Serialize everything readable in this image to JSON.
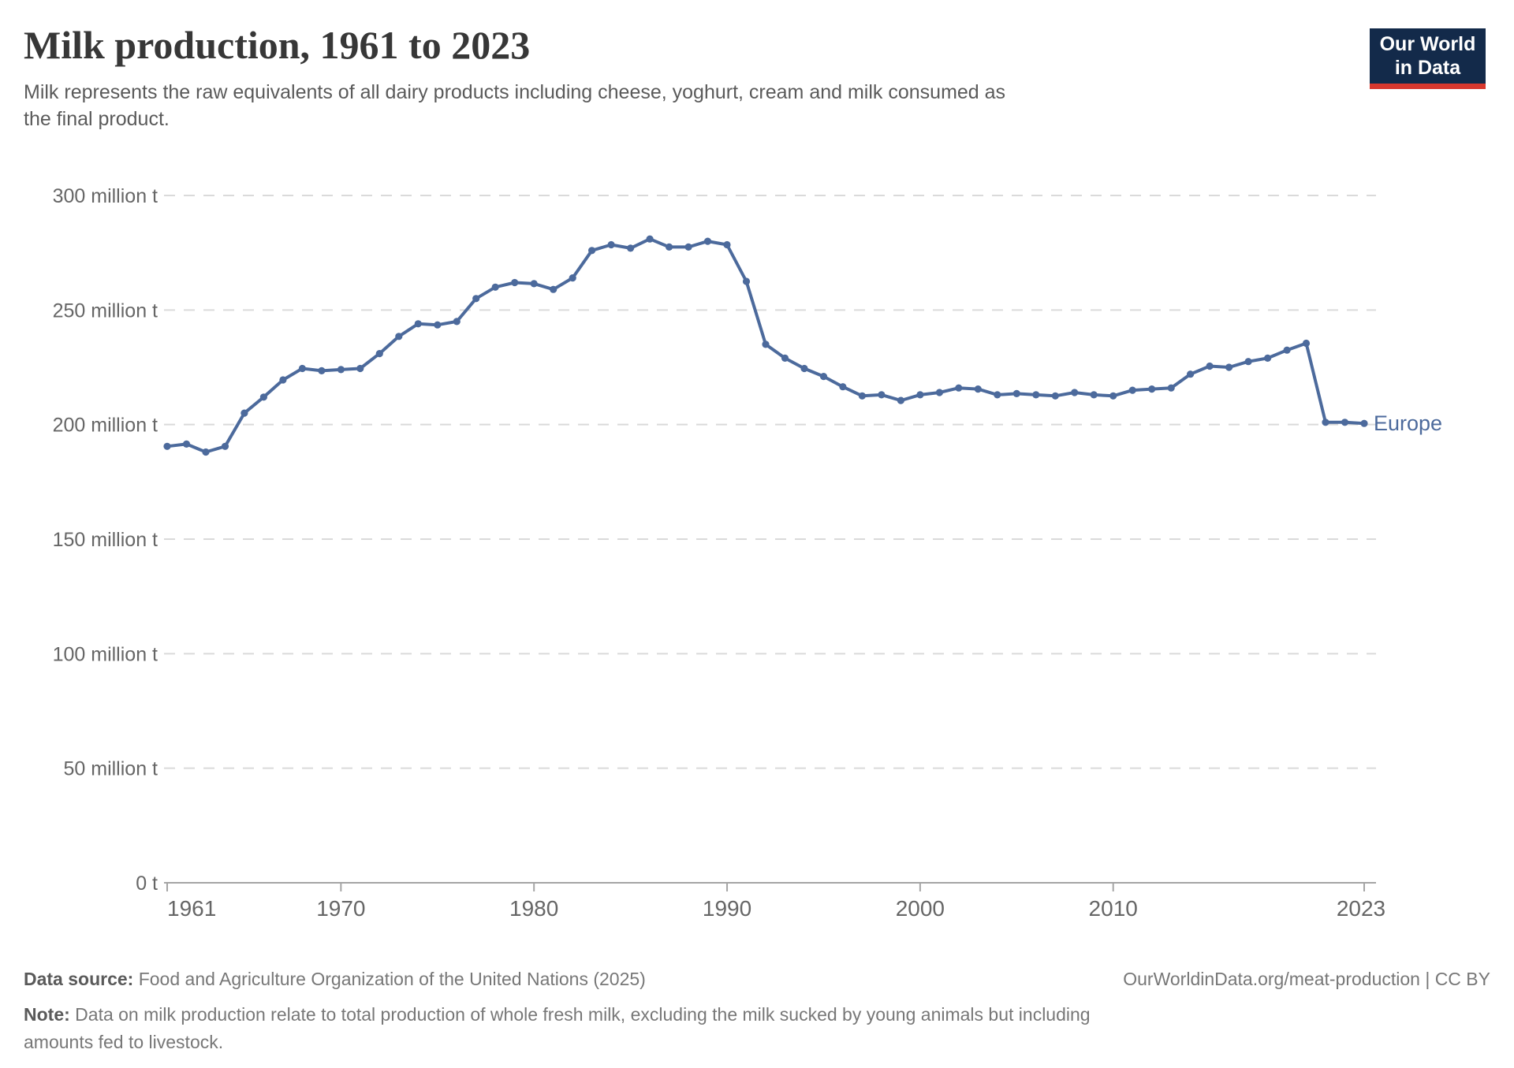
{
  "header": {
    "title": "Milk production, 1961 to 2023",
    "subtitle_line1": "Milk represents the raw equivalents of all dairy products including cheese, yoghurt, cream and milk consumed as",
    "subtitle_line2": "the final product.",
    "logo": {
      "line1": "Our World",
      "line2": "in Data",
      "bg_color": "#132A4A",
      "accent_color": "#D8382E"
    }
  },
  "chart_data": {
    "type": "line",
    "title": "Milk production, 1961 to 2023",
    "xlabel": "",
    "ylabel": "",
    "unit": "million t",
    "xlim": [
      1961,
      2023
    ],
    "ylim": [
      0,
      300
    ],
    "grid": "horizontal-dashed",
    "legend_position": "end-of-line",
    "x": [
      1961,
      1962,
      1963,
      1964,
      1965,
      1966,
      1967,
      1968,
      1969,
      1970,
      1971,
      1972,
      1973,
      1974,
      1975,
      1976,
      1977,
      1978,
      1979,
      1980,
      1981,
      1982,
      1983,
      1984,
      1985,
      1986,
      1987,
      1988,
      1989,
      1990,
      1991,
      1992,
      1993,
      1994,
      1995,
      1996,
      1997,
      1998,
      1999,
      2000,
      2001,
      2002,
      2003,
      2004,
      2005,
      2006,
      2007,
      2008,
      2009,
      2010,
      2011,
      2012,
      2013,
      2014,
      2015,
      2016,
      2017,
      2018,
      2019,
      2020,
      2021,
      2022,
      2023
    ],
    "series": [
      {
        "name": "Europe",
        "color": "#4C6A9C",
        "values": [
          190.5,
          191.5,
          188,
          190.5,
          205,
          212,
          219.5,
          224.5,
          223.5,
          224,
          224.5,
          231,
          238.5,
          244,
          243.5,
          245,
          255,
          260,
          262,
          261.5,
          259,
          264,
          276,
          278.5,
          277,
          281,
          277.5,
          277.5,
          280,
          278.5,
          262.5,
          235,
          229,
          224.5,
          221,
          216.5,
          212.5,
          213,
          210.5,
          213,
          214,
          216,
          215.5,
          213,
          213.5,
          213,
          212.5,
          214,
          213,
          212.5,
          215,
          215.5,
          216,
          222,
          225.5,
          225,
          227.5,
          229,
          232.5,
          235.5,
          201,
          201,
          200.5
        ]
      }
    ],
    "y_ticks": [
      {
        "value": 300,
        "label": "300 million t"
      },
      {
        "value": 250,
        "label": "250 million t"
      },
      {
        "value": 200,
        "label": "200 million t"
      },
      {
        "value": 150,
        "label": "150 million t"
      },
      {
        "value": 100,
        "label": "100 million t"
      },
      {
        "value": 50,
        "label": "50 million t"
      },
      {
        "value": 0,
        "label": "0 t"
      }
    ],
    "x_ticks": [
      {
        "year": 1961,
        "label": "1961"
      },
      {
        "year": 1970,
        "label": "1970"
      },
      {
        "year": 1980,
        "label": "1980"
      },
      {
        "year": 1990,
        "label": "1990"
      },
      {
        "year": 2000,
        "label": "2000"
      },
      {
        "year": 2010,
        "label": "2010"
      },
      {
        "year": 2023,
        "label": "2023"
      }
    ]
  },
  "footer": {
    "data_source_label": "Data source:",
    "data_source_text": "Food and Agriculture Organization of the United Nations (2025)",
    "link": "OurWorldinData.org/meat-production | CC BY",
    "note_label": "Note:",
    "note_line1": "Data on milk production relate to total production of whole fresh milk, excluding the milk sucked by young animals but including",
    "note_line2": "amounts fed to livestock."
  }
}
